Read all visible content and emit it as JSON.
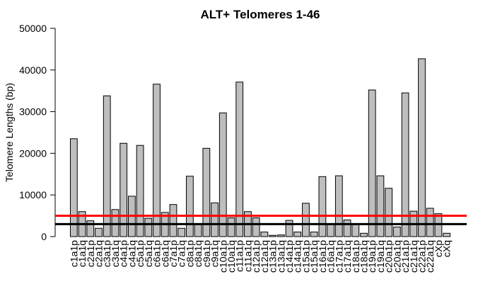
{
  "chart_data": {
    "type": "bar",
    "title": "ALT+ Telomeres 1-46",
    "xlabel": "",
    "ylabel": "Telomere Lengths (bp)",
    "ylim": [
      0,
      50000
    ],
    "yticks": [
      0,
      10000,
      20000,
      30000,
      40000,
      50000
    ],
    "grid": false,
    "categories": [
      "c1a1p",
      "c1a1q",
      "c2a1p",
      "c2a1q",
      "c3a1p",
      "c3a1q",
      "c4a1p",
      "c4a1q",
      "c5a1p",
      "c5a1q",
      "c6a1p",
      "c6a1q",
      "c7a1p",
      "c7a1q",
      "c8a1p",
      "c8a1q",
      "c9a1p",
      "c9a1q",
      "c10a1p",
      "c10a1q",
      "c11a1p",
      "c11a1q",
      "c12a1p",
      "c12a1q",
      "c13a1p",
      "c13a1q",
      "c14a1p",
      "c14a1q",
      "c15a1p",
      "c15a1q",
      "c16a1p",
      "c16a1q",
      "c17a1p",
      "c17a1q",
      "c18a1p",
      "c18a1q",
      "c19a1p",
      "c19a1q",
      "c20a1p",
      "c20a1q",
      "c21a1p",
      "c21a1q",
      "c22a1p",
      "c22a1q",
      "cXp",
      "cXq"
    ],
    "values": [
      23500,
      6000,
      3800,
      2000,
      33800,
      6500,
      22400,
      9700,
      21900,
      4400,
      36600,
      5800,
      7700,
      2000,
      14500,
      3000,
      21200,
      8100,
      29700,
      4500,
      37100,
      6000,
      4500,
      1100,
      300,
      400,
      3900,
      1100,
      8000,
      1100,
      14400,
      3000,
      14600,
      4000,
      3000,
      800,
      35200,
      14600,
      11600,
      2300,
      34500,
      6100,
      42700,
      6800,
      5500,
      800
    ],
    "reference_lines": [
      {
        "color": "#ff0000",
        "value": 5000
      },
      {
        "color": "#000000",
        "value": 3000
      }
    ],
    "colors": {
      "bar_fill": "#bebebe",
      "bar_stroke": "#000000"
    }
  }
}
